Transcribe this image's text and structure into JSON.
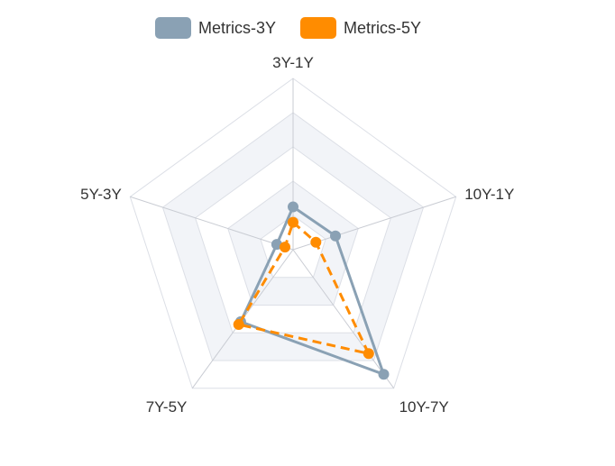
{
  "legend": {
    "series_1": "Metrics-3Y",
    "series_2": "Metrics-5Y"
  },
  "colors": {
    "series_1": "#8aa1b4",
    "series_2": "#ff8c00",
    "grid_line": "#dcdfe6",
    "band_fill": "#f2f4f8"
  },
  "chart_data": {
    "type": "radar",
    "indicators": [
      "3Y-1Y",
      "10Y-1Y",
      "10Y-7Y",
      "7Y-5Y",
      "5Y-3Y"
    ],
    "max": 1.0,
    "rings": 5,
    "series": [
      {
        "name": "Metrics-3Y",
        "values": [
          0.25,
          0.26,
          0.9,
          0.52,
          0.1
        ],
        "line_style": "solid"
      },
      {
        "name": "Metrics-5Y",
        "values": [
          0.16,
          0.14,
          0.75,
          0.54,
          0.05
        ],
        "line_style": "dashed"
      }
    ]
  }
}
